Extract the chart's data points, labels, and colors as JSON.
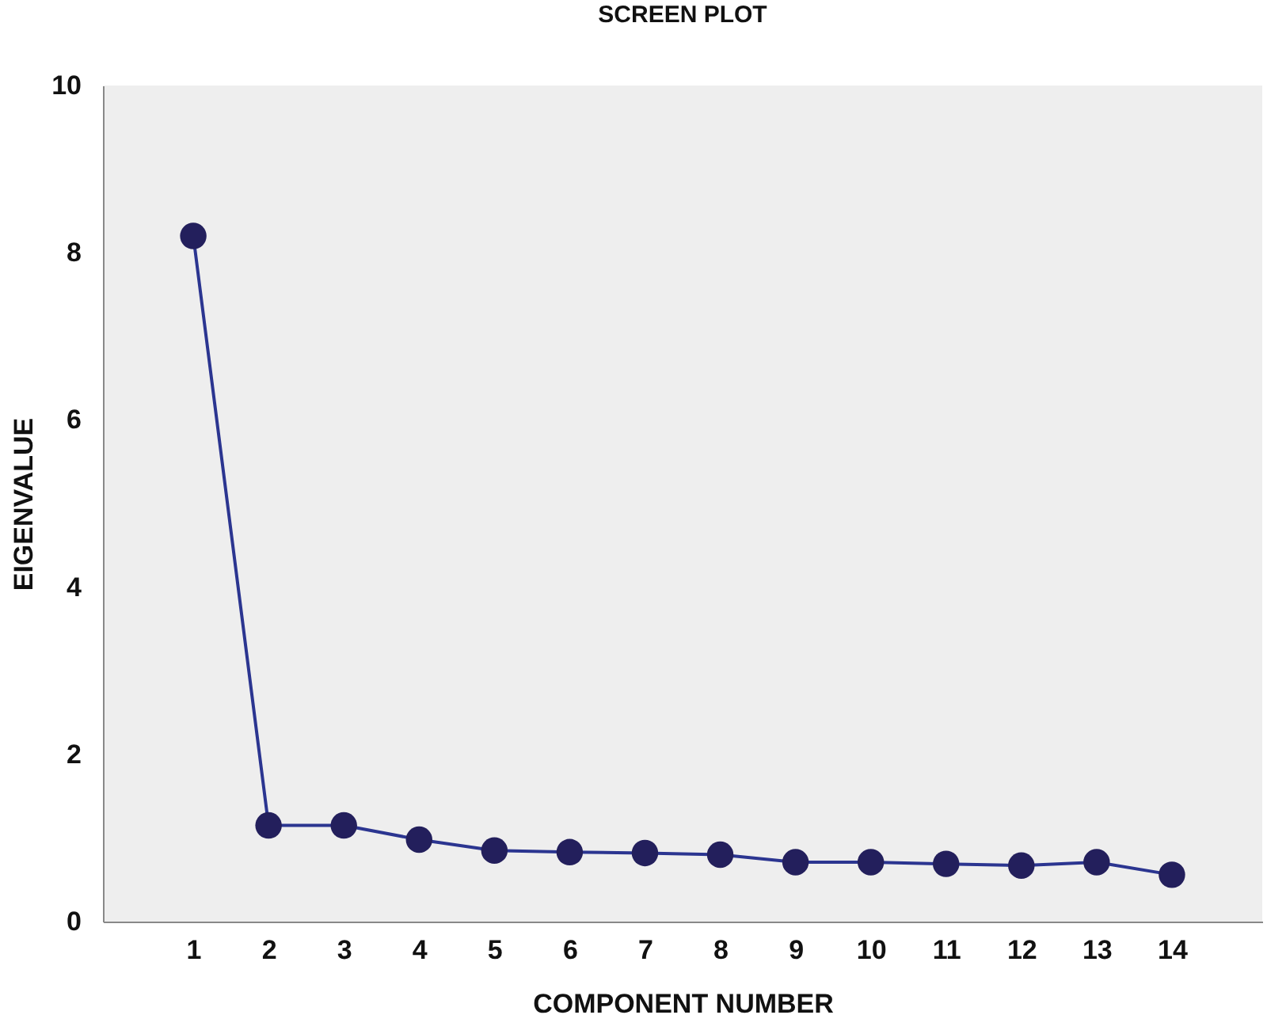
{
  "chart_data": {
    "type": "line",
    "title": "SCREEN PLOT",
    "xlabel": "COMPONENT NUMBER",
    "ylabel": "EIGENVALUE",
    "x": [
      1,
      2,
      3,
      4,
      5,
      6,
      7,
      8,
      9,
      10,
      11,
      12,
      13,
      14
    ],
    "series": [
      {
        "color": "#2b3590",
        "values": [
          8.2,
          1.15,
          1.15,
          0.98,
          0.85,
          0.83,
          0.82,
          0.8,
          0.71,
          0.71,
          0.69,
          0.67,
          0.71,
          0.56
        ]
      }
    ],
    "xlim": [
      -0.2,
      15.2
    ],
    "xticks": [
      1,
      2,
      3,
      4,
      5,
      6,
      7,
      8,
      9,
      10,
      11,
      12,
      13,
      14
    ],
    "ylim": [
      0,
      10
    ],
    "yticks": [
      0,
      2,
      4,
      6,
      8,
      10
    ],
    "grid": false,
    "marker": "circle",
    "line_style": "solid"
  }
}
